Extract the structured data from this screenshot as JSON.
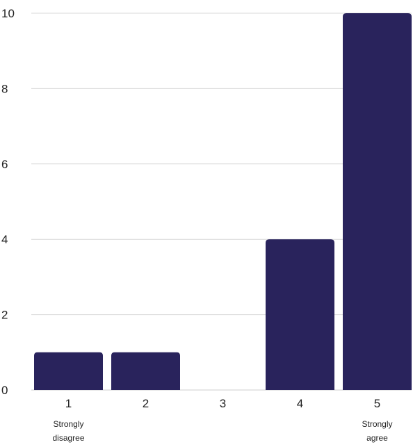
{
  "chart_data": {
    "type": "bar",
    "categories": [
      "1",
      "2",
      "3",
      "4",
      "5"
    ],
    "values": [
      1,
      1,
      0,
      4,
      10
    ],
    "category_sublabels": [
      [
        "Strongly",
        "disagree"
      ],
      [],
      [],
      [],
      [
        "Strongly",
        "agree"
      ]
    ],
    "title": "",
    "xlabel": "",
    "ylabel": "",
    "ylim": [
      0,
      10
    ],
    "yticks": [
      0,
      2,
      4,
      6,
      8,
      10
    ],
    "grid": true,
    "bar_color": "#29235c"
  }
}
